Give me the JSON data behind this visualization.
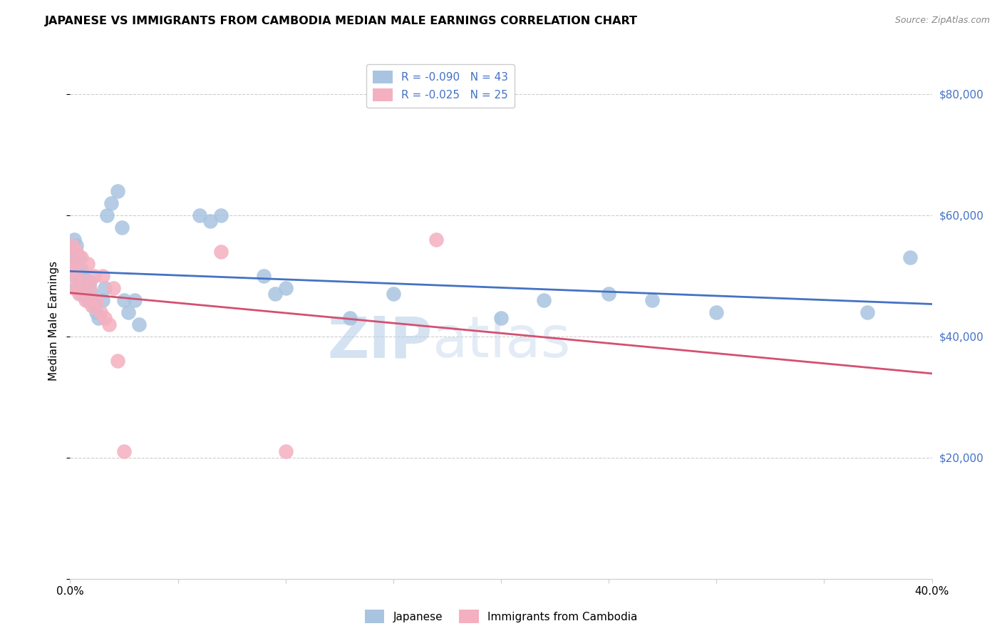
{
  "title": "JAPANESE VS IMMIGRANTS FROM CAMBODIA MEDIAN MALE EARNINGS CORRELATION CHART",
  "source": "Source: ZipAtlas.com",
  "ylabel": "Median Male Earnings",
  "xmin": 0.0,
  "xmax": 0.4,
  "ymin": 0,
  "ymax": 85000,
  "yticks": [
    0,
    20000,
    40000,
    60000,
    80000
  ],
  "ytick_labels": [
    "",
    "$20,000",
    "$40,000",
    "$60,000",
    "$80,000"
  ],
  "xticks": [
    0.0,
    0.05,
    0.1,
    0.15,
    0.2,
    0.25,
    0.3,
    0.35,
    0.4
  ],
  "xtick_labels": [
    "0.0%",
    "",
    "",
    "",
    "",
    "",
    "",
    "",
    "40.0%"
  ],
  "legend_labels": [
    "Japanese",
    "Immigrants from Cambodia"
  ],
  "legend_R": [
    "R = -0.090",
    "R = -0.025"
  ],
  "legend_N": [
    "N = 43",
    "N = 25"
  ],
  "blue_color": "#a8c4e0",
  "pink_color": "#f4b0c0",
  "line_blue": "#4472c4",
  "line_pink": "#d45070",
  "right_tick_color": "#4472c4",
  "watermark_zip": "ZIP",
  "watermark_atlas": "atlas",
  "japanese_x": [
    0.001,
    0.001,
    0.002,
    0.002,
    0.003,
    0.003,
    0.004,
    0.004,
    0.005,
    0.005,
    0.006,
    0.007,
    0.008,
    0.009,
    0.01,
    0.011,
    0.012,
    0.013,
    0.015,
    0.016,
    0.017,
    0.019,
    0.022,
    0.024,
    0.025,
    0.027,
    0.03,
    0.032,
    0.06,
    0.065,
    0.07,
    0.09,
    0.095,
    0.1,
    0.13,
    0.15,
    0.2,
    0.22,
    0.25,
    0.27,
    0.3,
    0.37,
    0.39
  ],
  "japanese_y": [
    54000,
    52000,
    56000,
    50000,
    55000,
    48000,
    53000,
    49000,
    51000,
    47000,
    50000,
    48000,
    46000,
    49000,
    47000,
    45000,
    44000,
    43000,
    46000,
    48000,
    60000,
    62000,
    64000,
    58000,
    46000,
    44000,
    46000,
    42000,
    60000,
    59000,
    60000,
    50000,
    47000,
    48000,
    43000,
    47000,
    43000,
    46000,
    47000,
    46000,
    44000,
    44000,
    53000
  ],
  "cambodia_x": [
    0.001,
    0.001,
    0.002,
    0.002,
    0.003,
    0.003,
    0.004,
    0.005,
    0.006,
    0.007,
    0.008,
    0.009,
    0.01,
    0.011,
    0.012,
    0.014,
    0.015,
    0.016,
    0.018,
    0.02,
    0.022,
    0.025,
    0.07,
    0.1,
    0.17
  ],
  "cambodia_y": [
    55000,
    52000,
    51000,
    48000,
    54000,
    50000,
    47000,
    53000,
    49000,
    46000,
    52000,
    48000,
    45000,
    50000,
    46000,
    44000,
    50000,
    43000,
    42000,
    48000,
    36000,
    21000,
    54000,
    21000,
    56000
  ]
}
